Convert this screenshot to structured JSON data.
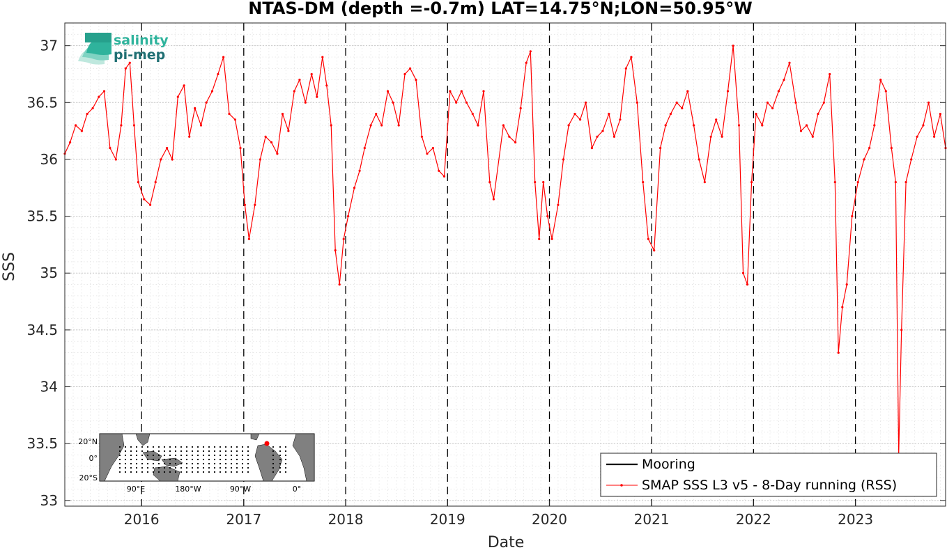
{
  "chart_data": {
    "type": "line",
    "title": "NTAS-DM (depth =-0.7m) LAT=14.75°N;LON=50.95°W",
    "xlabel": "Date",
    "ylabel": "SSS",
    "xlim": [
      "2015-04-01",
      "2023-11-20"
    ],
    "ylim": [
      32.95,
      37.2
    ],
    "yticks": [
      "33",
      "33.5",
      "34",
      "34.5",
      "35",
      "35.5",
      "36",
      "36.5",
      "37"
    ],
    "xticks": [
      "2016",
      "2017",
      "2018",
      "2019",
      "2020",
      "2021",
      "2022",
      "2023"
    ],
    "year_boundaries": [
      "2016-01-01",
      "2017-01-01",
      "2018-01-01",
      "2019-01-01",
      "2020-01-01",
      "2021-01-01",
      "2022-01-01",
      "2023-01-01"
    ],
    "grid": "on",
    "legend_position": "bottom-right",
    "series": [
      {
        "name": "Mooring",
        "color": "#000000",
        "x": [],
        "y": []
      },
      {
        "name": "SMAP SSS L3 v5 - 8-Day running (RSS)",
        "color": "#ff0000",
        "x": [
          "2015-04-01",
          "2015-04-20",
          "2015-05-10",
          "2015-06-01",
          "2015-06-20",
          "2015-07-10",
          "2015-08-01",
          "2015-08-20",
          "2015-09-10",
          "2015-10-01",
          "2015-10-20",
          "2015-11-05",
          "2015-11-20",
          "2015-12-05",
          "2015-12-20",
          "2016-01-10",
          "2016-02-01",
          "2016-02-20",
          "2016-03-10",
          "2016-04-01",
          "2016-04-20",
          "2016-05-10",
          "2016-06-01",
          "2016-06-20",
          "2016-07-10",
          "2016-08-01",
          "2016-08-20",
          "2016-09-10",
          "2016-10-01",
          "2016-10-20",
          "2016-11-10",
          "2016-12-01",
          "2016-12-20",
          "2017-01-05",
          "2017-01-20",
          "2017-02-10",
          "2017-03-01",
          "2017-03-20",
          "2017-04-10",
          "2017-05-01",
          "2017-05-20",
          "2017-06-10",
          "2017-07-01",
          "2017-07-20",
          "2017-08-10",
          "2017-09-01",
          "2017-09-20",
          "2017-10-10",
          "2017-10-25",
          "2017-11-10",
          "2017-11-25",
          "2017-12-10",
          "2017-12-25",
          "2018-01-10",
          "2018-02-01",
          "2018-02-20",
          "2018-03-10",
          "2018-04-01",
          "2018-04-20",
          "2018-05-10",
          "2018-06-01",
          "2018-06-20",
          "2018-07-10",
          "2018-08-01",
          "2018-08-20",
          "2018-09-10",
          "2018-10-01",
          "2018-10-20",
          "2018-11-10",
          "2018-12-01",
          "2018-12-20",
          "2019-01-10",
          "2019-02-01",
          "2019-02-20",
          "2019-03-10",
          "2019-04-01",
          "2019-04-20",
          "2019-05-10",
          "2019-06-01",
          "2019-06-15",
          "2019-07-20",
          "2019-08-10",
          "2019-09-01",
          "2019-09-20",
          "2019-10-10",
          "2019-10-25",
          "2019-11-10",
          "2019-11-25",
          "2019-12-10",
          "2019-12-25",
          "2020-01-10",
          "2020-02-01",
          "2020-02-20",
          "2020-03-10",
          "2020-04-01",
          "2020-04-20",
          "2020-05-10",
          "2020-06-01",
          "2020-06-20",
          "2020-07-10",
          "2020-08-01",
          "2020-08-20",
          "2020-09-10",
          "2020-10-01",
          "2020-10-20",
          "2020-11-10",
          "2020-12-01",
          "2020-12-20",
          "2021-01-10",
          "2021-02-01",
          "2021-02-20",
          "2021-03-10",
          "2021-04-01",
          "2021-04-20",
          "2021-05-10",
          "2021-06-01",
          "2021-06-20",
          "2021-07-10",
          "2021-08-01",
          "2021-08-20",
          "2021-09-10",
          "2021-10-01",
          "2021-10-20",
          "2021-11-10",
          "2021-11-25",
          "2021-12-10",
          "2021-12-25",
          "2022-01-10",
          "2022-02-01",
          "2022-02-20",
          "2022-03-10",
          "2022-04-01",
          "2022-04-20",
          "2022-05-10",
          "2022-06-01",
          "2022-06-20",
          "2022-07-10",
          "2022-08-01",
          "2022-08-20",
          "2022-09-10",
          "2022-10-01",
          "2022-10-20",
          "2022-11-01",
          "2022-11-15",
          "2022-12-01",
          "2022-12-20",
          "2023-01-10",
          "2023-02-01",
          "2023-02-20",
          "2023-03-10",
          "2023-04-01",
          "2023-04-20",
          "2023-05-10",
          "2023-05-25",
          "2023-06-05",
          "2023-06-15",
          "2023-07-01",
          "2023-07-20",
          "2023-08-10",
          "2023-09-01",
          "2023-09-20",
          "2023-10-10",
          "2023-11-01",
          "2023-11-20"
        ],
        "y": [
          36.05,
          36.15,
          36.3,
          36.25,
          36.4,
          36.45,
          36.55,
          36.6,
          36.1,
          36.0,
          36.3,
          36.8,
          36.85,
          36.3,
          35.8,
          35.65,
          35.6,
          35.8,
          36.0,
          36.1,
          36.0,
          36.55,
          36.65,
          36.2,
          36.45,
          36.3,
          36.5,
          36.6,
          36.75,
          36.9,
          36.4,
          36.35,
          36.1,
          35.6,
          35.3,
          35.6,
          36.0,
          36.2,
          36.15,
          36.05,
          36.4,
          36.25,
          36.6,
          36.7,
          36.5,
          36.75,
          36.55,
          36.9,
          36.65,
          36.3,
          35.2,
          34.9,
          35.3,
          35.5,
          35.75,
          35.9,
          36.1,
          36.3,
          36.4,
          36.3,
          36.6,
          36.5,
          36.3,
          36.75,
          36.8,
          36.7,
          36.2,
          36.05,
          36.1,
          35.9,
          35.85,
          36.6,
          36.5,
          36.6,
          36.5,
          36.4,
          36.3,
          36.6,
          35.8,
          35.65,
          36.3,
          36.2,
          36.15,
          36.45,
          36.85,
          36.95,
          35.8,
          35.3,
          35.8,
          35.5,
          35.3,
          35.6,
          36.0,
          36.3,
          36.4,
          36.35,
          36.5,
          36.1,
          36.2,
          36.25,
          36.4,
          36.2,
          36.35,
          36.8,
          36.9,
          36.5,
          35.8,
          35.3,
          35.2,
          36.1,
          36.3,
          36.4,
          36.5,
          36.45,
          36.6,
          36.3,
          36.0,
          35.8,
          36.2,
          36.35,
          36.2,
          36.6,
          37.0,
          36.3,
          35.0,
          34.9,
          35.8,
          36.4,
          36.3,
          36.5,
          36.45,
          36.6,
          36.7,
          36.85,
          36.5,
          36.25,
          36.3,
          36.2,
          36.4,
          36.5,
          36.75,
          35.8,
          34.3,
          34.7,
          34.9,
          35.5,
          35.8,
          36.0,
          36.1,
          36.3,
          36.7,
          36.6,
          36.1,
          35.8,
          33.4,
          34.5,
          35.8,
          36.0,
          36.2,
          36.3,
          36.5,
          36.2,
          36.4,
          36.1
        ]
      }
    ]
  },
  "logo": {
    "line1": "salinity",
    "line2": "pi-mep"
  },
  "inset_map": {
    "lat_labels": [
      "20°N",
      "0°",
      "20°S"
    ],
    "lon_labels": [
      "90°E",
      "180°W",
      "90°W",
      "0°"
    ],
    "colors": {
      "ocean": "#ffffff",
      "land": "#808080",
      "marker": "#ff0000"
    }
  },
  "colors": {
    "series_line": "#ff0000",
    "axis": "#262626",
    "grid_minor": "#d9d9d9"
  }
}
